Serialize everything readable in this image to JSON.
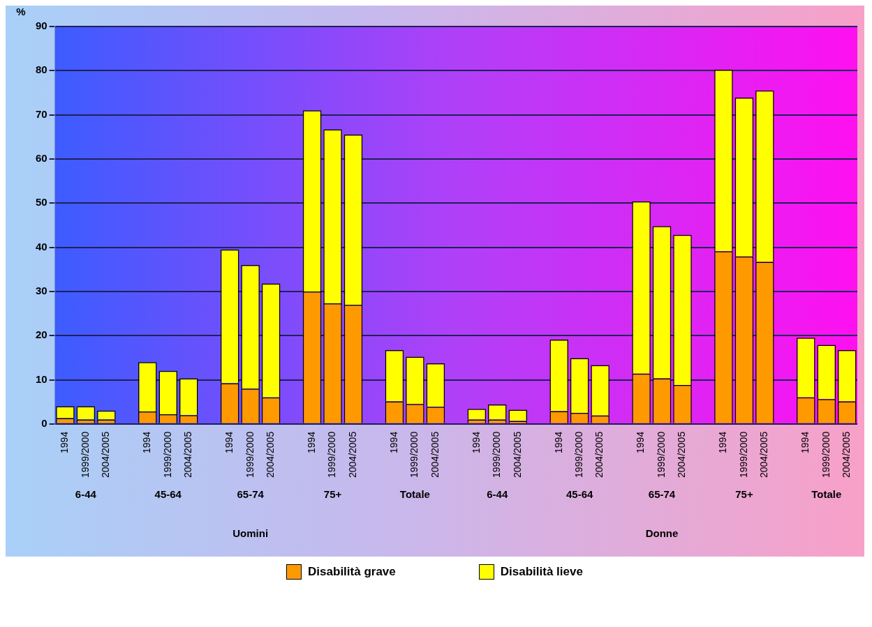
{
  "chart_data": {
    "type": "bar",
    "stacked": true,
    "ylabel": "%",
    "categories": [
      "1994",
      "1999/2000",
      "2004/2005",
      null,
      "1994",
      "1999/2000",
      "2004/2005",
      null,
      "1994",
      "1999/2000",
      "2004/2005",
      null,
      "1994",
      "1999/2000",
      "2004/2005",
      null,
      "1994",
      "1999/2000",
      "2004/2005",
      null,
      "1994",
      "1999/2000",
      "2004/2005",
      null,
      "1994",
      "1999/2000",
      "2004/2005",
      null,
      "1994",
      "1999/2000",
      "2004/2005",
      null,
      "1994",
      "1999/2000",
      "2004/2005",
      null,
      "1994",
      "1999/2000",
      "2004/2005"
    ],
    "series": [
      {
        "name": "Disabilità grave",
        "color": "#ff9900",
        "values": [
          1.3,
          1,
          1,
          null,
          2.8,
          2.2,
          2,
          null,
          9.2,
          8,
          6,
          null,
          30,
          27.3,
          27,
          null,
          5.1,
          4.5,
          3.9,
          null,
          1,
          1,
          0.7,
          null,
          2.9,
          2.5,
          1.9,
          null,
          11.4,
          10.3,
          8.8,
          null,
          39.1,
          37.9,
          36.7,
          null,
          6,
          5.6,
          5.1
        ]
      },
      {
        "name": "Disabilità lieve",
        "color": "#ffff00",
        "values": [
          2.7,
          3,
          2,
          null,
          11.2,
          9.8,
          8.3,
          null,
          30.3,
          28,
          25.8,
          null,
          41,
          39.4,
          38.5,
          null,
          11.6,
          10.7,
          9.8,
          null,
          2.4,
          3.4,
          2.5,
          null,
          16.2,
          12.4,
          11.4,
          null,
          39,
          34.5,
          34,
          null,
          41.1,
          36,
          38.8,
          null,
          13.5,
          12.3,
          11.6
        ]
      }
    ],
    "ylim": [
      0,
      90
    ],
    "yticks": [
      0,
      10,
      20,
      30,
      40,
      50,
      60,
      70,
      80,
      90
    ],
    "grid": "y",
    "legend": "bottom",
    "annotations": [
      "6-44",
      "45-64",
      "65-74",
      "75+",
      "Totale",
      "6-44",
      "45-64",
      "65-74",
      "75+",
      "Totale",
      "Uomini",
      "Donne"
    ]
  }
}
